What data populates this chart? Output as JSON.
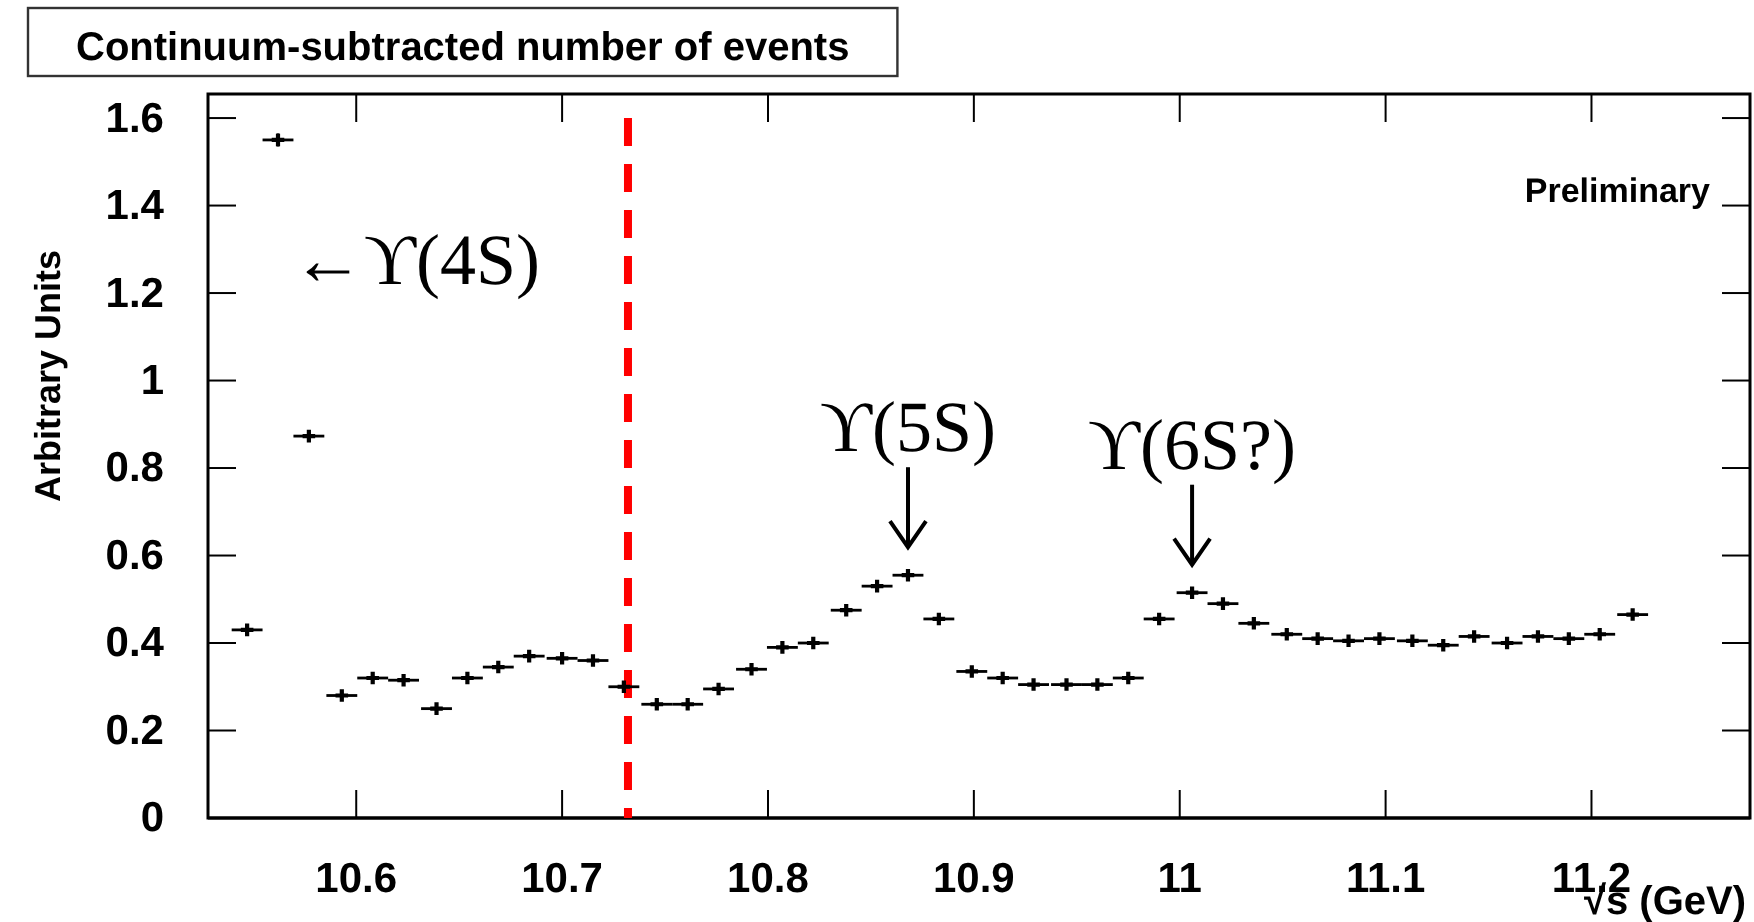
{
  "chart_data": {
    "type": "scatter",
    "title": "Continuum-subtracted number of events",
    "xlabel": "√s (GeV)",
    "ylabel": "Arbitrary Units",
    "xlim": [
      10.528,
      11.277
    ],
    "ylim": [
      0,
      1.655
    ],
    "xticks": [
      10.6,
      10.7,
      10.8,
      10.9,
      11,
      11.1,
      11.2
    ],
    "yticks": [
      0,
      0.2,
      0.4,
      0.6,
      0.8,
      1,
      1.2,
      1.4,
      1.6
    ],
    "marker": "cross",
    "grid": false,
    "series": [
      {
        "color": "#000000",
        "x": [
          10.547,
          10.562,
          10.577,
          10.593,
          10.608,
          10.623,
          10.639,
          10.654,
          10.669,
          10.684,
          10.7,
          10.715,
          10.73,
          10.746,
          10.761,
          10.776,
          10.792,
          10.807,
          10.822,
          10.838,
          10.853,
          10.868,
          10.883,
          10.899,
          10.914,
          10.929,
          10.945,
          10.96,
          10.975,
          10.99,
          11.006,
          11.021,
          11.036,
          11.052,
          11.067,
          11.082,
          11.097,
          11.113,
          11.128,
          11.143,
          11.159,
          11.174,
          11.189,
          11.204,
          11.22
        ],
        "values": [
          0.43,
          1.55,
          0.873,
          0.28,
          0.32,
          0.315,
          0.25,
          0.32,
          0.345,
          0.37,
          0.365,
          0.36,
          0.3,
          0.26,
          0.26,
          0.295,
          0.34,
          0.39,
          0.4,
          0.475,
          0.53,
          0.555,
          0.455,
          0.335,
          0.32,
          0.305,
          0.305,
          0.305,
          0.32,
          0.455,
          0.515,
          0.49,
          0.445,
          0.42,
          0.41,
          0.405,
          0.41,
          0.405,
          0.395,
          0.415,
          0.4,
          0.415,
          0.41,
          0.42,
          0.465
        ],
        "errors": [
          0.01,
          0.015,
          0.01,
          0.008,
          0.008,
          0.008,
          0.008,
          0.008,
          0.008,
          0.008,
          0.008,
          0.008,
          0.008,
          0.008,
          0.008,
          0.008,
          0.008,
          0.008,
          0.008,
          0.008,
          0.008,
          0.008,
          0.008,
          0.008,
          0.008,
          0.008,
          0.008,
          0.008,
          0.008,
          0.008,
          0.008,
          0.008,
          0.008,
          0.008,
          0.008,
          0.008,
          0.008,
          0.008,
          0.008,
          0.008,
          0.008,
          0.008,
          0.008,
          0.008,
          0.012
        ],
        "xerrors": [
          0.0075,
          0.0075,
          0.0075,
          0.0075,
          0.0075,
          0.0075,
          0.0075,
          0.0075,
          0.0075,
          0.0075,
          0.0075,
          0.0075,
          0.0075,
          0.0075,
          0.0075,
          0.0075,
          0.0075,
          0.0075,
          0.0075,
          0.0075,
          0.0075,
          0.0075,
          0.0075,
          0.0075,
          0.0075,
          0.0075,
          0.0075,
          0.0075,
          0.0075,
          0.0075,
          0.0075,
          0.0075,
          0.0075,
          0.0075,
          0.0075,
          0.0075,
          0.0075,
          0.0075,
          0.0075,
          0.0075,
          0.0075,
          0.0075,
          0.0075,
          0.0075,
          0.0075
        ]
      }
    ],
    "ref_lines": [
      {
        "axis": "x",
        "value": 10.732,
        "color": "#ff0000",
        "line_style": "dashed"
      }
    ],
    "annotations": [
      "←ϒ(4S)",
      {
        "text": "ϒ(5S)",
        "x": 10.868,
        "y": 0.555
      },
      {
        "text": "ϒ(6S?)",
        "x": 11.006,
        "y": 0.515
      },
      "Preliminary"
    ]
  }
}
